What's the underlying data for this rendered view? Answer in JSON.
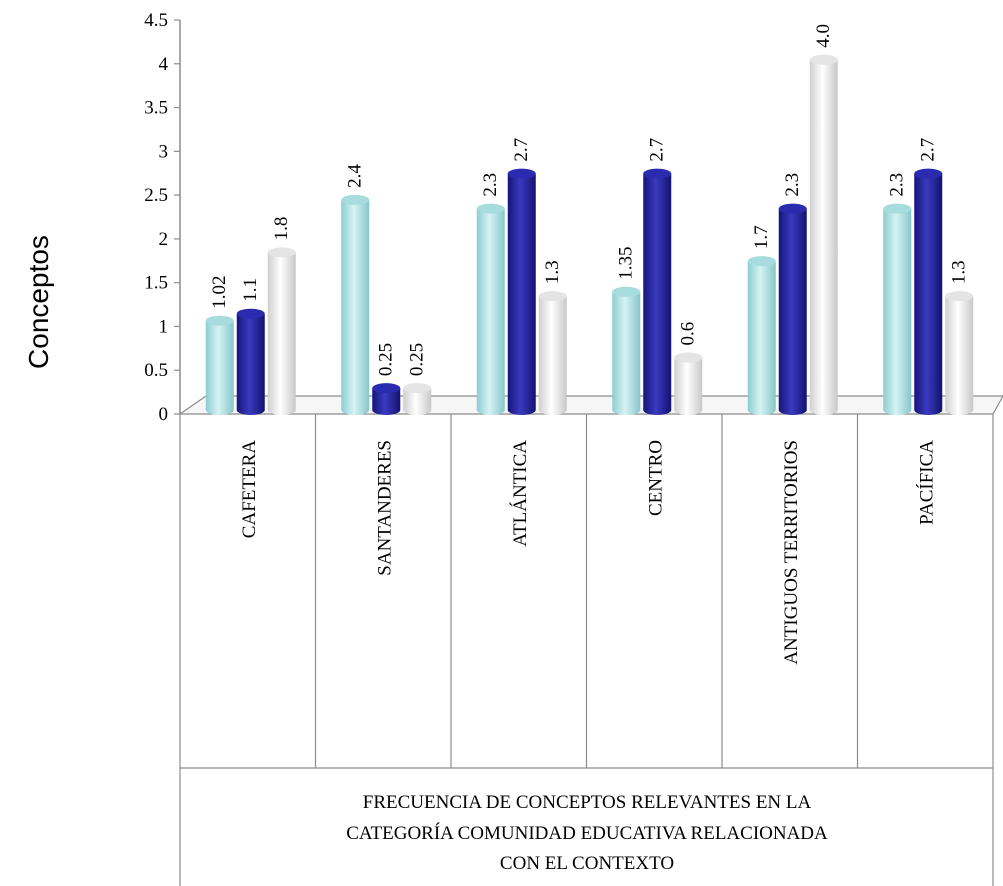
{
  "chart_data": {
    "type": "bar",
    "ylabel": "Conceptos",
    "xlabel": "FRECUENCIA DE CONCEPTOS RELEVANTES EN LA CATEGORÍA COMUNIDAD EDUCATIVA RELACIONADA CON EL CONTEXTO",
    "xlabel_lines": [
      "FRECUENCIA DE CONCEPTOS RELEVANTES EN LA",
      "CATEGORÍA COMUNIDAD EDUCATIVA RELACIONADA",
      "CON EL CONTEXTO"
    ],
    "ylim": [
      0,
      4.5
    ],
    "yticks": [
      "0",
      "0.5",
      "1",
      "1.5",
      "2",
      "2.5",
      "3",
      "3.5",
      "4",
      "4.5"
    ],
    "grid": false,
    "legend": "none",
    "categories": [
      "CAFETERA",
      "SANTANDERES",
      "ATLÁNTICA",
      "CENTRO",
      "ANTIGUOS TERRITORIOS",
      "PACÍFICA"
    ],
    "series": [
      {
        "color": "#b7e4e6",
        "values": [
          1.02,
          2.4,
          2.3,
          1.35,
          1.7,
          2.3
        ],
        "labels": [
          "1.02",
          "2.4",
          "2.3",
          "1.35",
          "1.7",
          "2.3"
        ]
      },
      {
        "color": "#23239a",
        "values": [
          1.1,
          0.25,
          2.7,
          2.7,
          2.3,
          2.7
        ],
        "labels": [
          "1.1",
          "0.25",
          "2.7",
          "2.7",
          "2.3",
          "2.7"
        ]
      },
      {
        "color": "#f2f2f2",
        "values": [
          1.8,
          0.25,
          1.3,
          0.6,
          4.0,
          1.3
        ],
        "labels": [
          "1.8",
          "0.25",
          "1.3",
          "0.6",
          "4.0",
          "1.3"
        ]
      }
    ]
  }
}
